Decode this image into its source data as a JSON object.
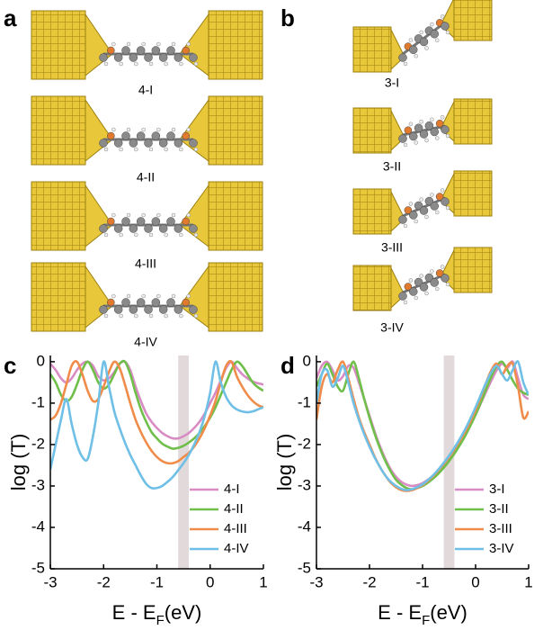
{
  "panels": {
    "a": {
      "label": "a",
      "structures": [
        "4-I",
        "4-II",
        "4-III",
        "4-IV"
      ]
    },
    "b": {
      "label": "b",
      "structures": [
        "3-I",
        "3-II",
        "3-III",
        "3-IV"
      ]
    },
    "c": {
      "label": "c"
    },
    "d": {
      "label": "d"
    }
  },
  "chart_data": [
    {
      "type": "line",
      "xlabel": [
        "E - E",
        "F",
        "(eV)"
      ],
      "ylabel": "log (T)",
      "xlim": [
        -3,
        1
      ],
      "ylim": [
        -5,
        0.15
      ],
      "xticks": [
        -3,
        -2,
        -1,
        0,
        1
      ],
      "yticks": [
        0,
        -1,
        -2,
        -3,
        -4,
        -5
      ],
      "shade": {
        "xrange": [
          -0.6,
          -0.4
        ],
        "color": "#e2dada"
      },
      "legend": "lower right",
      "x": [
        -3.0,
        -2.9,
        -2.8,
        -2.7,
        -2.6,
        -2.5,
        -2.4,
        -2.3,
        -2.2,
        -2.1,
        -2.0,
        -1.9,
        -1.8,
        -1.7,
        -1.6,
        -1.5,
        -1.4,
        -1.3,
        -1.2,
        -1.1,
        -1.0,
        -0.9,
        -0.8,
        -0.7,
        -0.6,
        -0.5,
        -0.4,
        -0.3,
        -0.2,
        -0.1,
        0,
        0.1,
        0.2,
        0.3,
        0.4,
        0.5,
        0.6,
        0.7,
        0.8,
        0.9,
        1.0
      ],
      "series": [
        {
          "name": "4-I",
          "color": "#d98cc4",
          "values": [
            -0.05,
            -0.2,
            -0.4,
            -0.5,
            -0.4,
            -0.2,
            -0.05,
            0,
            -0.1,
            -0.35,
            -0.45,
            -0.4,
            -0.25,
            -0.05,
            0,
            -0.2,
            -0.6,
            -0.95,
            -1.25,
            -1.45,
            -1.6,
            -1.72,
            -1.8,
            -1.85,
            -1.85,
            -1.8,
            -1.72,
            -1.6,
            -1.45,
            -1.25,
            -1.0,
            -0.75,
            -0.45,
            -0.15,
            0,
            -0.15,
            -0.3,
            -0.4,
            -0.48,
            -0.52,
            -0.55
          ]
        },
        {
          "name": "4-II",
          "color": "#6fbf4a",
          "values": [
            -0.3,
            -0.5,
            -0.8,
            -0.95,
            -0.85,
            -0.55,
            -0.2,
            0,
            -0.2,
            -0.5,
            -0.65,
            -0.55,
            -0.3,
            -0.05,
            0,
            -0.3,
            -0.75,
            -1.15,
            -1.45,
            -1.7,
            -1.85,
            -1.98,
            -2.05,
            -2.1,
            -2.08,
            -2.03,
            -1.95,
            -1.85,
            -1.72,
            -1.55,
            -1.35,
            -1.1,
            -0.8,
            -0.5,
            -0.2,
            0,
            -0.1,
            -0.3,
            -0.5,
            -0.62,
            -0.7
          ]
        },
        {
          "name": "4-III",
          "color": "#f08c4a",
          "values": [
            -1.4,
            -1.3,
            -1.0,
            -0.55,
            -0.1,
            0,
            -0.3,
            -0.7,
            -0.95,
            -0.9,
            -0.6,
            -0.25,
            0,
            -0.15,
            -0.55,
            -1.0,
            -1.4,
            -1.7,
            -1.95,
            -2.15,
            -2.3,
            -2.4,
            -2.45,
            -2.45,
            -2.4,
            -2.3,
            -2.2,
            -2.05,
            -1.85,
            -1.6,
            -1.3,
            -0.95,
            -0.5,
            -0.1,
            0,
            -0.35,
            -0.6,
            -0.8,
            -0.95,
            -1.05,
            -1.1
          ]
        },
        {
          "name": "4-IV",
          "color": "#6fbfe6",
          "values": [
            -2.6,
            -2.0,
            -1.4,
            -0.9,
            -1.5,
            -2.0,
            -2.3,
            -2.35,
            -1.8,
            -1.0,
            0,
            -0.6,
            -1.2,
            -1.6,
            -1.95,
            -2.25,
            -2.5,
            -2.75,
            -2.95,
            -3.05,
            -3.05,
            -3.0,
            -2.9,
            -2.78,
            -2.62,
            -2.45,
            -2.25,
            -2.0,
            -1.7,
            -1.3,
            -0.75,
            0,
            -0.5,
            -0.85,
            -1.05,
            -1.15,
            -1.2,
            -1.22,
            -1.2,
            -1.15,
            -1.1
          ]
        }
      ]
    },
    {
      "type": "line",
      "xlabel": [
        "E - E",
        "F",
        "(eV)"
      ],
      "ylabel": "log (T)",
      "xlim": [
        -3,
        1
      ],
      "ylim": [
        -5,
        0.15
      ],
      "xticks": [
        -3,
        -2,
        -1,
        0,
        1
      ],
      "yticks": [
        0,
        -1,
        -2,
        -3,
        -4,
        -5
      ],
      "shade": {
        "xrange": [
          -0.6,
          -0.4
        ],
        "color": "#e2dada"
      },
      "legend": "lower right",
      "x": [
        -3.0,
        -2.9,
        -2.8,
        -2.7,
        -2.6,
        -2.5,
        -2.4,
        -2.3,
        -2.2,
        -2.1,
        -2.0,
        -1.9,
        -1.8,
        -1.7,
        -1.6,
        -1.5,
        -1.4,
        -1.3,
        -1.2,
        -1.1,
        -1.0,
        -0.9,
        -0.8,
        -0.7,
        -0.6,
        -0.5,
        -0.4,
        -0.3,
        -0.2,
        -0.1,
        0,
        0.1,
        0.2,
        0.3,
        0.4,
        0.5,
        0.6,
        0.7,
        0.8,
        0.9,
        1.0
      ],
      "series": [
        {
          "name": "3-I",
          "color": "#d98cc4",
          "values": [
            -0.4,
            -0.1,
            0,
            -0.2,
            -0.45,
            -0.35,
            -0.1,
            -0.15,
            -0.5,
            -0.9,
            -1.3,
            -1.7,
            -2.05,
            -2.35,
            -2.6,
            -2.78,
            -2.9,
            -2.97,
            -3.0,
            -2.98,
            -2.93,
            -2.85,
            -2.75,
            -2.62,
            -2.48,
            -2.32,
            -2.15,
            -1.95,
            -1.75,
            -1.52,
            -1.28,
            -1.0,
            -0.72,
            -0.45,
            -0.2,
            -0.05,
            -0.15,
            0,
            -0.4,
            -0.8,
            -0.9
          ]
        },
        {
          "name": "3-II",
          "color": "#6fbf4a",
          "values": [
            -0.6,
            -0.3,
            -0.05,
            -0.3,
            -0.6,
            -0.7,
            -0.3,
            0,
            -0.4,
            -0.9,
            -1.35,
            -1.75,
            -2.1,
            -2.4,
            -2.65,
            -2.85,
            -2.97,
            -3.05,
            -3.08,
            -3.05,
            -3.0,
            -2.92,
            -2.82,
            -2.7,
            -2.56,
            -2.4,
            -2.22,
            -2.02,
            -1.8,
            -1.55,
            -1.28,
            -0.98,
            -0.66,
            -0.35,
            -0.1,
            0,
            -0.2,
            -0.45,
            -0.65,
            -0.75,
            -0.8
          ]
        },
        {
          "name": "3-III",
          "color": "#f08c4a",
          "values": [
            -1.4,
            -0.6,
            -0.3,
            -0.5,
            -0.2,
            0,
            -0.4,
            -0.9,
            -1.35,
            -1.7,
            -2.0,
            -2.3,
            -2.55,
            -2.75,
            -2.92,
            -3.03,
            -3.1,
            -3.12,
            -3.1,
            -3.05,
            -2.98,
            -2.88,
            -2.76,
            -2.62,
            -2.47,
            -2.3,
            -2.12,
            -1.92,
            -1.7,
            -1.45,
            -1.17,
            -0.85,
            -0.5,
            -0.2,
            -0.05,
            -0.3,
            -0.1,
            -0.05,
            -0.6,
            -1.35,
            -1.2
          ]
        },
        {
          "name": "3-IV",
          "color": "#6fbfe6",
          "values": [
            -1.0,
            -0.3,
            -0.2,
            -0.6,
            -0.4,
            -0.1,
            -0.5,
            -1.0,
            -1.4,
            -1.75,
            -2.05,
            -2.32,
            -2.55,
            -2.75,
            -2.9,
            -3.0,
            -3.07,
            -3.1,
            -3.08,
            -3.03,
            -2.96,
            -2.86,
            -2.74,
            -2.6,
            -2.44,
            -2.27,
            -2.08,
            -1.87,
            -1.64,
            -1.38,
            -1.1,
            -0.8,
            -0.5,
            -0.25,
            -0.1,
            -0.3,
            -0.45,
            -0.2,
            0,
            -0.5,
            -0.8
          ]
        }
      ]
    }
  ]
}
